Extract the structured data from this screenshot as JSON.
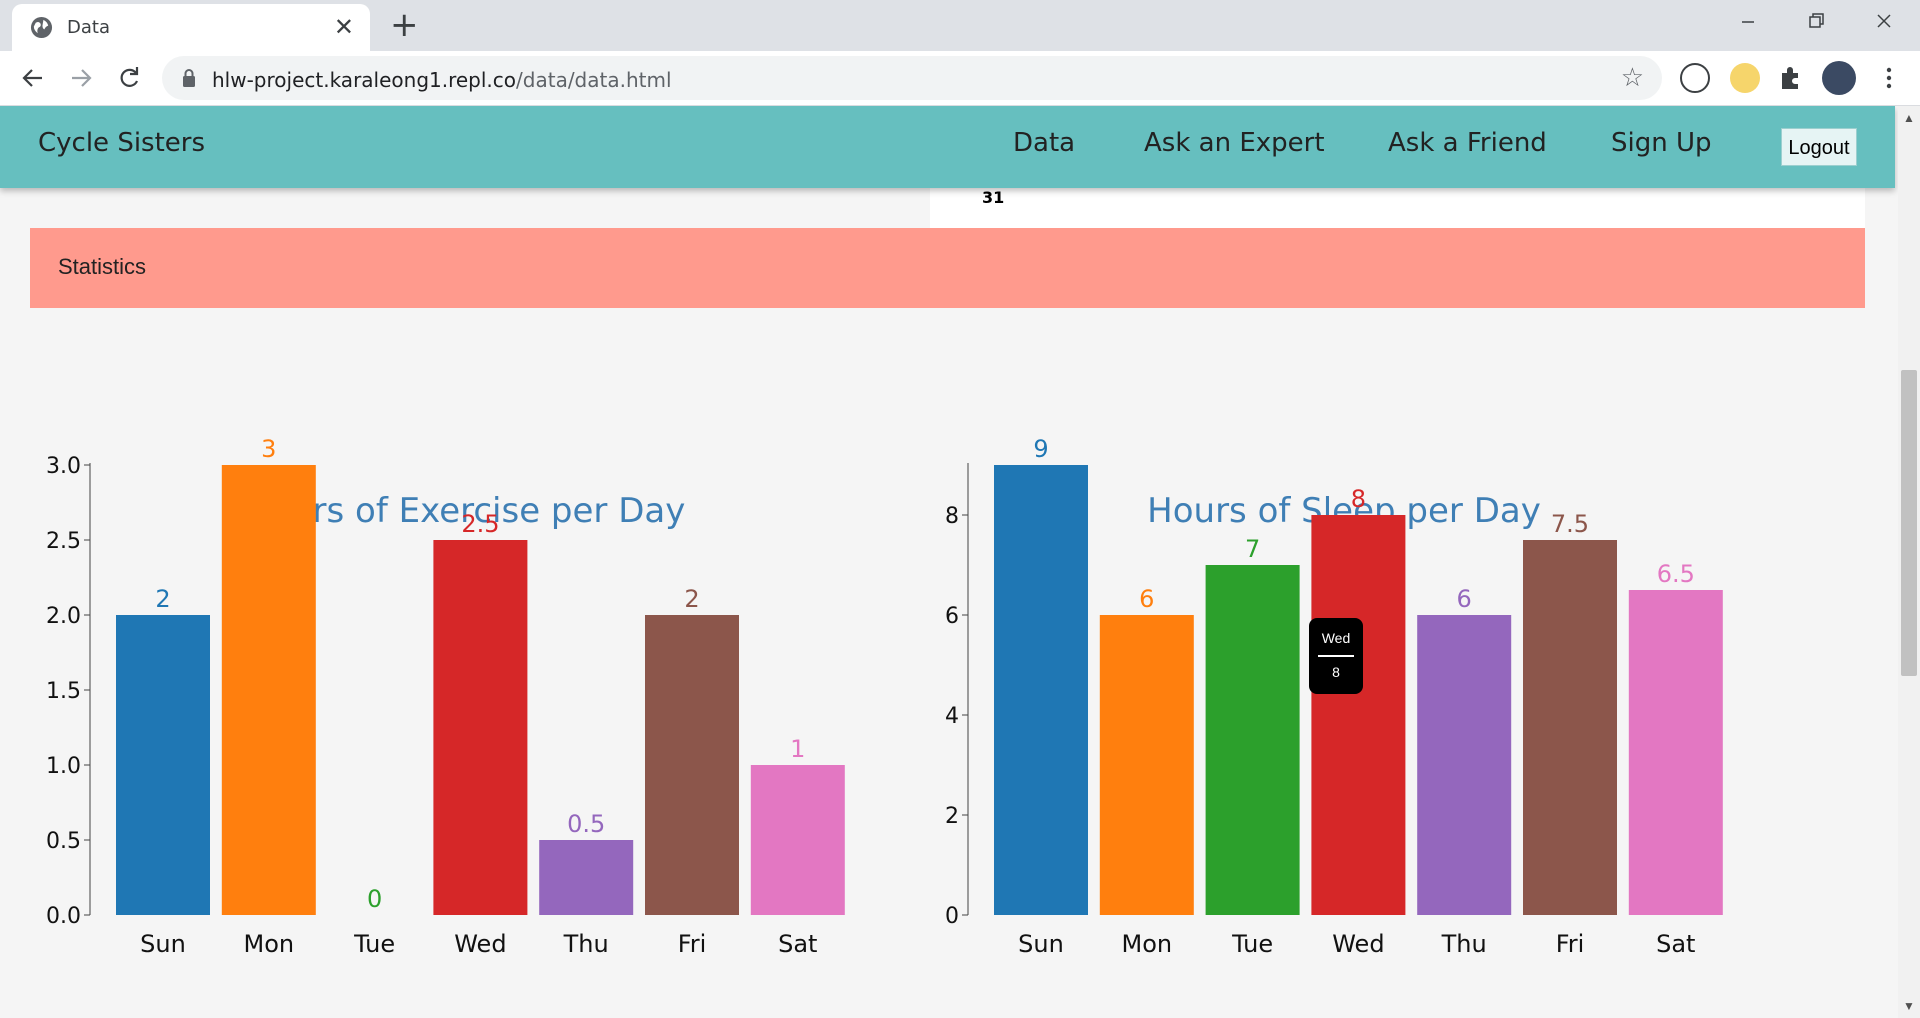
{
  "browser": {
    "tab_title": "Data",
    "tab_close": "✕",
    "new_tab": "+",
    "url_host": "hlw-project.karaleong1.repl.co",
    "url_path": "/data/data.html",
    "icons": [
      "globe-icon",
      "back-icon",
      "forward-icon",
      "reload-icon",
      "lock-icon",
      "star-icon",
      "extensions-icon"
    ]
  },
  "nav": {
    "brand": "Cycle Sisters",
    "links": [
      "Data",
      "Ask an Expert",
      "Ask a Friend",
      "Sign Up"
    ],
    "logout": "Logout"
  },
  "calendar": {
    "visible_day": "31"
  },
  "statistics": {
    "title": "Statistics"
  },
  "tooltip": {
    "label": "Wed",
    "value": "8"
  },
  "colors": [
    "#1f77b4",
    "#ff7f0e",
    "#2ca02c",
    "#d62728",
    "#9467bd",
    "#8c564b",
    "#e377c2"
  ],
  "chart_data": [
    {
      "type": "bar",
      "title": "Hours of Exercise per Day",
      "categories": [
        "Sun",
        "Mon",
        "Tue",
        "Wed",
        "Thu",
        "Fri",
        "Sat"
      ],
      "values": [
        2,
        3,
        0,
        2.5,
        0.5,
        2,
        1
      ],
      "value_labels": [
        "2",
        "3",
        "0",
        "2.5",
        "0.5",
        "2",
        "1"
      ],
      "ylim": [
        0,
        3
      ],
      "yticks": [
        0,
        0.5,
        1,
        1.5,
        2,
        2.5,
        3
      ],
      "ytick_labels": [
        "0.0",
        "0.5",
        "1.0",
        "1.5",
        "2.0",
        "2.5",
        "3.0"
      ],
      "grid": false,
      "legend": "none"
    },
    {
      "type": "bar",
      "title": "Hours of Sleep per Day",
      "categories": [
        "Sun",
        "Mon",
        "Tue",
        "Wed",
        "Thu",
        "Fri",
        "Sat"
      ],
      "values": [
        9,
        6,
        7,
        8,
        6,
        7.5,
        6.5
      ],
      "value_labels": [
        "9",
        "6",
        "7",
        "8",
        "6",
        "7.5",
        "6.5"
      ],
      "ylim": [
        0,
        9
      ],
      "yticks": [
        0,
        2,
        4,
        6,
        8
      ],
      "ytick_labels": [
        "0",
        "2",
        "4",
        "6",
        "8"
      ],
      "grid": false,
      "legend": "none"
    }
  ]
}
